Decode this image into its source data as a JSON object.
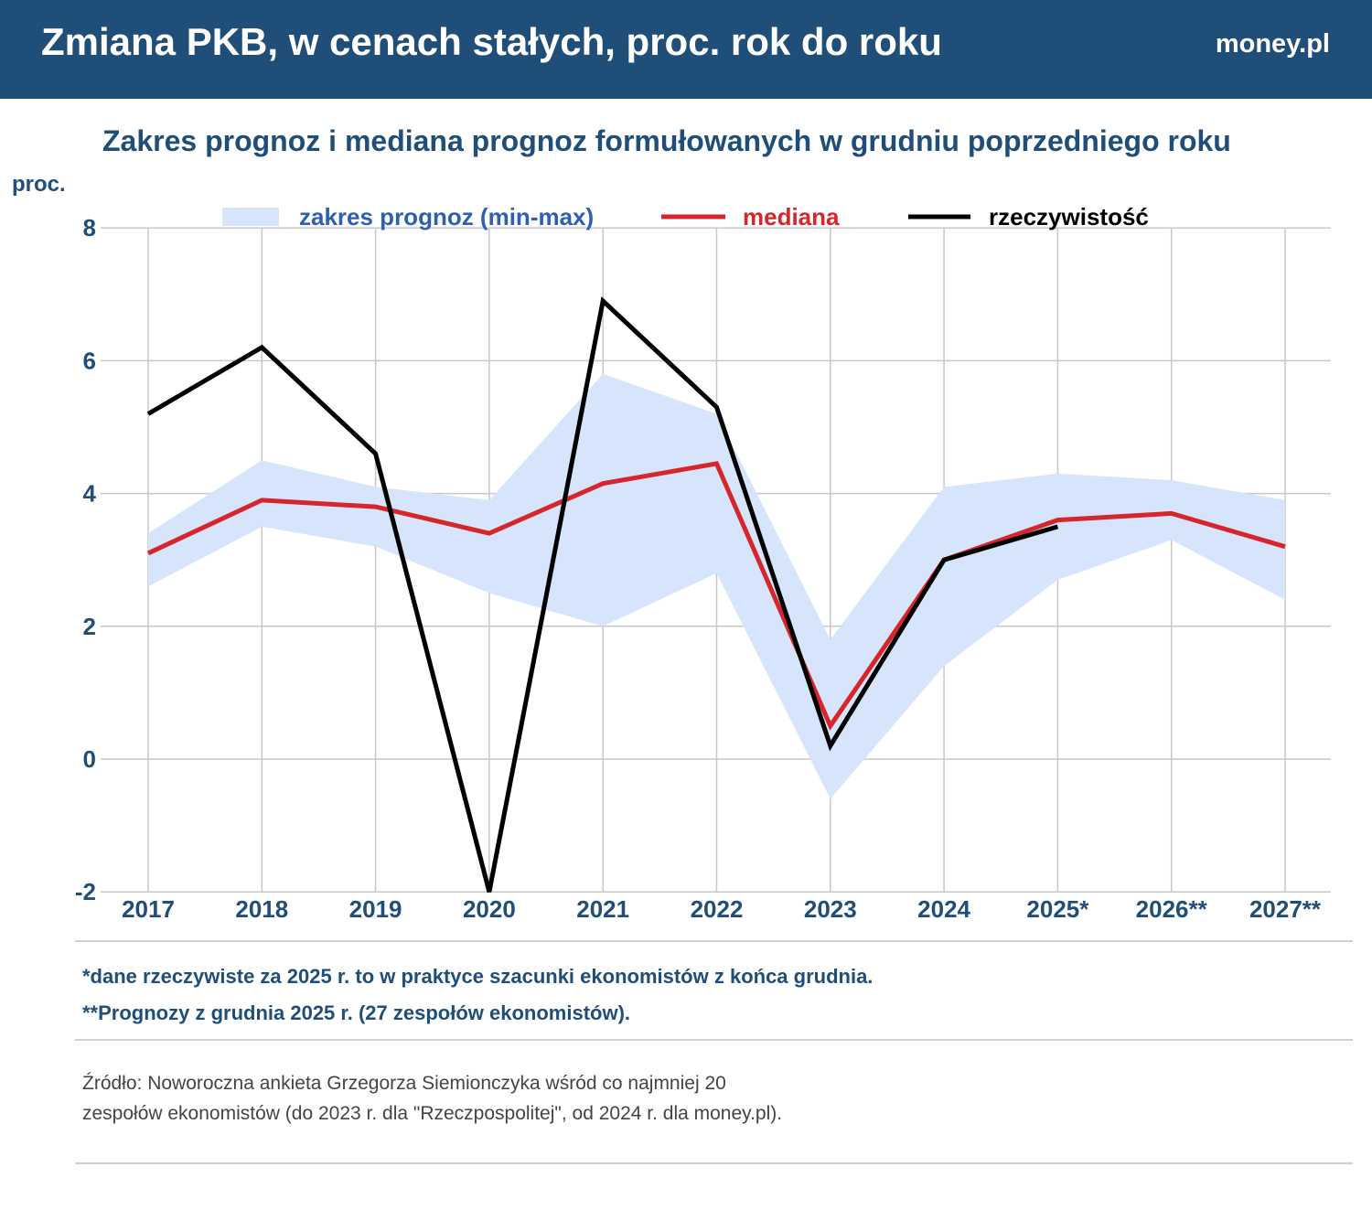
{
  "header": {
    "title": "Zmiana PKB, w cenach stałych, proc. rok do roku",
    "logo": "money.pl"
  },
  "chart_data": {
    "type": "line",
    "title": "Zakres prognoz i mediana prognoz formułowanych w grudniu poprzedniego roku",
    "ylabel": "proc.",
    "ylim": [
      -2,
      8
    ],
    "yticks": [
      "-2",
      "0",
      "2",
      "4",
      "6",
      "8"
    ],
    "categories": [
      "2017",
      "2018",
      "2019",
      "2020",
      "2021",
      "2022",
      "2023",
      "2024",
      "2025*",
      "2026**",
      "2027**"
    ],
    "legend": [
      "zakres prognoz (min-max)",
      "mediana",
      "rzeczywistość"
    ],
    "series": [
      {
        "name": "zakres prognoz (min-max) max",
        "values": [
          3.4,
          4.5,
          4.1,
          3.9,
          5.8,
          5.2,
          1.8,
          4.1,
          4.3,
          4.2,
          3.9
        ]
      },
      {
        "name": "zakres prognoz (min-max) min",
        "values": [
          2.6,
          3.5,
          3.2,
          2.5,
          2.0,
          2.8,
          -0.6,
          1.4,
          2.7,
          3.3,
          2.4
        ]
      },
      {
        "name": "mediana",
        "values": [
          3.1,
          3.9,
          3.8,
          3.4,
          4.15,
          4.45,
          0.5,
          3.0,
          3.6,
          3.7,
          3.2
        ]
      },
      {
        "name": "rzeczywistość",
        "values": [
          5.2,
          6.2,
          4.6,
          -2.0,
          6.9,
          5.3,
          0.2,
          3.0,
          3.5,
          null,
          null
        ]
      }
    ],
    "colors": {
      "range": "#d6e4fc",
      "median": "#d7262b",
      "actual": "#000000",
      "axis": "#1f4e79"
    }
  },
  "notes": [
    "*dane rzeczywiste za 2025 r. to w praktyce szacunki ekonomistów z końca grudnia.",
    "**Prognozy z grudnia 2025 r. (27 zespołów ekonomistów)."
  ],
  "source": [
    "Źródło: Noworoczna ankieta Grzegorza Siemionczyka wśród co najmniej 20",
    "zespołów ekonomistów (do  2023 r. dla \"Rzeczpospolitej\", od 2024 r. dla money.pl)."
  ]
}
